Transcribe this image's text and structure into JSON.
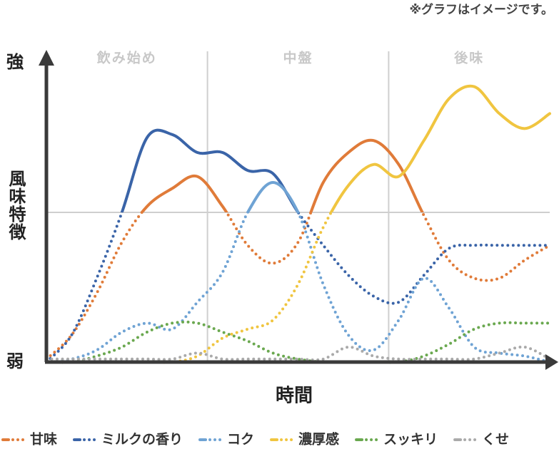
{
  "chart_data": {
    "type": "line",
    "note": "※グラフはイメージです。",
    "x_label": "時間",
    "sections": [
      "飲み始め",
      "中盤",
      "後味"
    ],
    "vlines": [
      32,
      68
    ],
    "hline": 50,
    "xlim": [
      0,
      100
    ],
    "ylim": [
      0,
      100
    ],
    "yticks": [
      {
        "value": 0,
        "label": "弱"
      },
      {
        "value": 50,
        "label": "風味特徴"
      },
      {
        "value": 100,
        "label": "強"
      }
    ],
    "x": [
      0,
      5,
      10,
      15,
      20,
      25,
      30,
      35,
      40,
      45,
      50,
      55,
      60,
      65,
      70,
      75,
      80,
      85,
      90,
      95,
      100
    ],
    "series": [
      {
        "name": "甘味",
        "color": "#e07b39",
        "values": [
          1,
          9,
          23,
          40,
          52,
          58,
          62,
          52,
          39,
          33,
          40,
          60,
          70,
          74,
          66,
          49,
          34,
          28,
          28,
          34,
          39
        ]
      },
      {
        "name": "ミルクの香り",
        "color": "#3a64a8",
        "values": [
          0,
          9,
          28,
          50,
          75,
          76,
          70,
          70,
          64,
          63,
          50,
          39,
          29,
          22,
          20,
          29,
          38,
          39,
          39,
          39,
          39
        ]
      },
      {
        "name": "コク",
        "color": "#6fa3d4",
        "values": [
          0,
          1,
          4,
          10,
          13,
          11,
          20,
          30,
          50,
          60,
          50,
          26,
          9,
          4,
          14,
          28,
          18,
          5,
          3,
          2,
          0
        ]
      },
      {
        "name": "濃厚感",
        "color": "#f0c540",
        "values": [
          0,
          0,
          0,
          0,
          0,
          0,
          2,
          8,
          11,
          14,
          26,
          45,
          59,
          66,
          62,
          74,
          88,
          92,
          83,
          78,
          83
        ]
      },
      {
        "name": "スッキリ",
        "color": "#6aa84f",
        "values": [
          0,
          0,
          2,
          5,
          10,
          13,
          13,
          10,
          7,
          3,
          1,
          0,
          0,
          0,
          0,
          2,
          6,
          11,
          13,
          13,
          13
        ]
      },
      {
        "name": "くせ",
        "color": "#aaaaaa",
        "values": [
          1,
          1,
          1,
          1,
          1,
          1,
          3,
          1,
          1,
          1,
          1,
          1,
          5,
          2,
          1,
          1,
          1,
          1,
          3,
          5,
          1
        ]
      }
    ]
  }
}
